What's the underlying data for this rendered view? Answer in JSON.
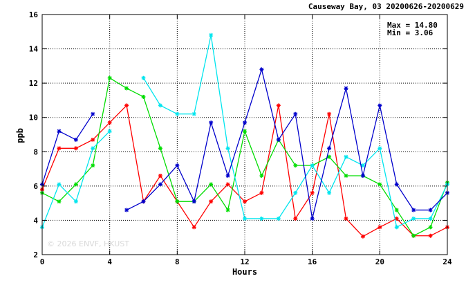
{
  "chart_data": {
    "type": "line",
    "title": "Causeway Bay, 03 20200626-20200629",
    "max_label": "Max = 14.80",
    "min_label": "Min =  3.06",
    "watermark": "© 2026  ENVF, HKUST",
    "xlabel": "Hours",
    "ylabel": "ppb",
    "xlim": [
      0,
      24
    ],
    "ylim": [
      2,
      16
    ],
    "x_ticks": [
      0,
      4,
      8,
      12,
      16,
      20,
      24
    ],
    "y_ticks": [
      2,
      4,
      6,
      8,
      10,
      12,
      14,
      16
    ],
    "grid": true,
    "legend": "none",
    "x": [
      0,
      1,
      2,
      3,
      4,
      5,
      6,
      7,
      8,
      9,
      10,
      11,
      12,
      13,
      14,
      15,
      16,
      17,
      18,
      19,
      20,
      21,
      22,
      23,
      24
    ],
    "series": [
      {
        "color": "#ff0000",
        "values": [
          5.8,
          8.2,
          8.2,
          8.7,
          9.7,
          10.7,
          5.1,
          6.6,
          5.1,
          3.6,
          5.1,
          6.1,
          5.1,
          5.6,
          10.7,
          4.1,
          5.6,
          10.2,
          4.1,
          3.06,
          3.6,
          4.1,
          3.1,
          3.1,
          3.6
        ]
      },
      {
        "color": "#00dd00",
        "values": [
          5.6,
          5.1,
          6.1,
          7.2,
          12.3,
          11.7,
          11.2,
          8.2,
          5.1,
          5.1,
          6.1,
          4.6,
          9.2,
          6.6,
          8.7,
          7.2,
          7.2,
          7.7,
          6.6,
          6.6,
          6.1,
          4.6,
          3.1,
          3.6,
          6.2
        ]
      },
      {
        "color": "#00e5ee",
        "values": [
          3.6,
          6.1,
          5.1,
          8.2,
          9.2,
          null,
          12.3,
          10.7,
          10.2,
          10.2,
          14.8,
          8.2,
          4.1,
          4.1,
          4.1,
          5.6,
          7.2,
          5.6,
          7.7,
          7.2,
          8.2,
          3.6,
          4.1,
          4.1,
          6.1
        ]
      },
      {
        "color": "#0000cc",
        "values": [
          6.1,
          9.2,
          8.7,
          10.2,
          null,
          4.6,
          5.1,
          6.1,
          7.2,
          5.1,
          9.7,
          6.6,
          9.7,
          12.8,
          8.7,
          10.2,
          4.1,
          8.2,
          11.7,
          6.6,
          10.7,
          6.1,
          4.6,
          4.6,
          5.6
        ]
      }
    ]
  }
}
